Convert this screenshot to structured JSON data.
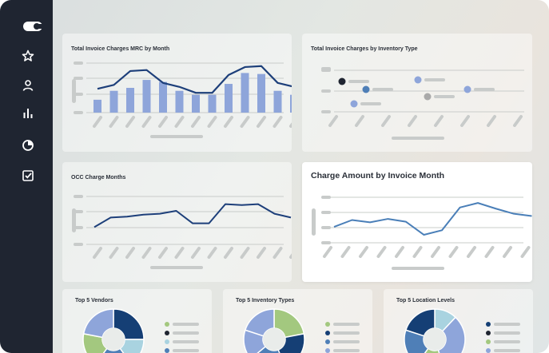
{
  "sidebar": {
    "items": [
      {
        "icon": "star-icon"
      },
      {
        "icon": "user-icon"
      },
      {
        "icon": "bar-chart-icon"
      },
      {
        "icon": "pie-chart-icon"
      },
      {
        "icon": "checkbox-icon"
      }
    ]
  },
  "colors": {
    "sidebar": "#1f2531",
    "bar": "#8ea5da",
    "line_dark": "#1d3f7a",
    "line_mid": "#4a7fb8",
    "pie_navy": "#153f75",
    "pie_light_blue": "#a9d3e0",
    "pie_steel": "#4f7fb7",
    "pie_periwinkle": "#8ea5da",
    "pie_green": "#a3c87f"
  },
  "cards": {
    "mrc": {
      "title": "Total Invoice Charges MRC by Month"
    },
    "inventory_type": {
      "title": "Total Invoice Charges by Inventory Type"
    },
    "occ": {
      "title": "OCC Charge Months"
    },
    "charge_amount": {
      "title": "Charge Amount by Invoice Month"
    },
    "top_vendors": {
      "title": "Top 5 Vendors"
    },
    "top_inventory": {
      "title": "Top 5 Inventory Types"
    },
    "top_locations": {
      "title": "Top 5 Location Levels"
    }
  },
  "chart_data": [
    {
      "type": "bar",
      "title": "Total Invoice Charges MRC by Month",
      "values": [
        13,
        22,
        25,
        33,
        31,
        22,
        18,
        18,
        29,
        40,
        39,
        22,
        18
      ],
      "line": [
        24,
        28,
        42,
        43,
        30,
        26,
        20,
        20,
        38,
        46,
        47,
        30,
        26
      ]
    },
    {
      "type": "scatter",
      "title": "Total Invoice Charges by Inventory Type",
      "points": [
        {
          "x": 1,
          "y": 74,
          "color": "#1f2531"
        },
        {
          "x": 2,
          "y": 58,
          "color": "#8ea5da"
        },
        {
          "x": 3,
          "y": 40,
          "color": "#4f7fb7"
        },
        {
          "x": 4,
          "y": 76,
          "color": "#8ea5da"
        },
        {
          "x": 5,
          "y": 46,
          "color": "#a9a9a9"
        },
        {
          "x": 6,
          "y": 56,
          "color": "#8ea5da"
        }
      ]
    },
    {
      "type": "line",
      "title": "OCC Charge Months",
      "values": [
        18,
        28,
        29,
        31,
        32,
        35,
        22,
        22,
        42,
        41,
        42,
        32,
        28
      ]
    },
    {
      "type": "line",
      "title": "Charge Amount by Invoice Month",
      "values": [
        28,
        40,
        36,
        42,
        37,
        14,
        22,
        62,
        70,
        60,
        51,
        47
      ]
    },
    {
      "type": "pie",
      "title": "Top 5 Vendors",
      "values": [
        0.25,
        0.15,
        0.2,
        0.18,
        0.22
      ],
      "colors": [
        "#153f75",
        "#a9d3e0",
        "#4f7fb7",
        "#a3c87f",
        "#8ea5da"
      ],
      "legend_colors": [
        "#a3c87f",
        "#1f2531",
        "#a9d3e0",
        "#4f7fb7"
      ]
    },
    {
      "type": "pie",
      "title": "Top 5 Inventory Types",
      "values": [
        0.22,
        0.22,
        0.2,
        0.16,
        0.2
      ],
      "colors": [
        "#a3c87f",
        "#153f75",
        "#4f7fb7",
        "#8ea5da",
        "#8ea5da"
      ],
      "legend_colors": [
        "#a3c87f",
        "#153f75",
        "#4f7fb7",
        "#8ea5da"
      ]
    },
    {
      "type": "pie",
      "title": "Top 5 Location Levels",
      "values": [
        0.12,
        0.33,
        0.15,
        0.2,
        0.2
      ],
      "colors": [
        "#a9d3e0",
        "#8ea5da",
        "#a3c87f",
        "#4f7fb7",
        "#153f75"
      ],
      "legend_colors": [
        "#153f75",
        "#1f2531",
        "#a3c87f",
        "#8ea5da"
      ]
    }
  ]
}
